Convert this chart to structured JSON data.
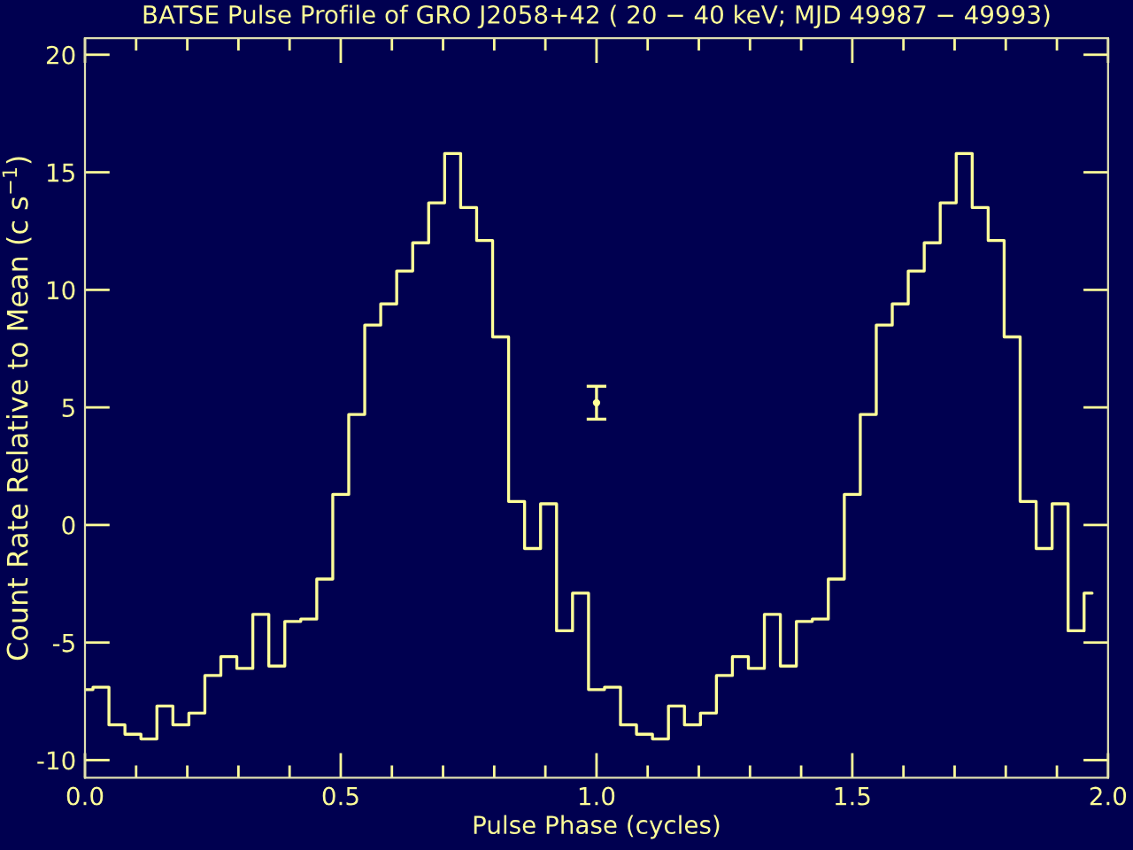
{
  "chart_data": {
    "type": "step",
    "title": "BATSE Pulse Profile of GRO J2058+42 ( 20 − 40 keV; MJD 49987 − 49993)",
    "xlabel": "Pulse Phase (cycles)",
    "ylabel": "Count Rate Relative to Mean (c s$^{−1}$)",
    "x": [
      0.0,
      0.03125,
      0.0625,
      0.09375,
      0.125,
      0.15625,
      0.1875,
      0.21875,
      0.25,
      0.28125,
      0.3125,
      0.34375,
      0.375,
      0.40625,
      0.4375,
      0.46875,
      0.5,
      0.53125,
      0.5625,
      0.59375,
      0.625,
      0.65625,
      0.6875,
      0.71875,
      0.75,
      0.78125,
      0.8125,
      0.84375,
      0.875,
      0.90625,
      0.9375,
      0.96875,
      1.0,
      1.03125,
      1.0625,
      1.09375,
      1.125,
      1.15625,
      1.1875,
      1.21875,
      1.25,
      1.28125,
      1.3125,
      1.34375,
      1.375,
      1.40625,
      1.4375,
      1.46875,
      1.5,
      1.53125,
      1.5625,
      1.59375,
      1.625,
      1.65625,
      1.6875,
      1.71875,
      1.75,
      1.78125,
      1.8125,
      1.84375,
      1.875,
      1.90625,
      1.9375,
      1.96875
    ],
    "series": [
      {
        "color": "#ffff99",
        "values": [
          -7.0,
          -6.9,
          -8.5,
          -8.9,
          -9.1,
          -7.7,
          -8.5,
          -8.0,
          -6.4,
          -5.6,
          -6.1,
          -3.8,
          -6.0,
          -4.1,
          -4.0,
          -2.3,
          1.3,
          4.7,
          8.5,
          9.4,
          10.8,
          12.0,
          13.7,
          15.8,
          13.5,
          12.1,
          8.0,
          1.0,
          -1.0,
          0.9,
          -4.5,
          -2.9,
          -7.0,
          -6.9,
          -8.5,
          -8.9,
          -9.1,
          -7.7,
          -8.5,
          -8.0,
          -6.4,
          -5.6,
          -6.1,
          -3.8,
          -6.0,
          -4.1,
          -4.0,
          -2.3,
          1.3,
          4.7,
          8.5,
          9.4,
          10.8,
          12.0,
          13.7,
          15.8,
          13.5,
          12.1,
          8.0,
          1.0,
          -1.0,
          0.9,
          -4.5,
          -2.9
        ]
      },
      {
        "type": "scatter",
        "color": "#ffff99",
        "x": [
          1.0
        ],
        "values": [
          5.2
        ],
        "errors": [
          0.7
        ]
      }
    ],
    "xlim": [
      0,
      2
    ],
    "ylim": [
      -10.75,
      20.7
    ],
    "xticks": [
      {
        "value": 0.0,
        "label": "0.0"
      },
      {
        "value": 0.1,
        "label": null
      },
      {
        "value": 0.2,
        "label": null
      },
      {
        "value": 0.3,
        "label": null
      },
      {
        "value": 0.4,
        "label": null
      },
      {
        "value": 0.5,
        "label": "0.5"
      },
      {
        "value": 0.6,
        "label": null
      },
      {
        "value": 0.7,
        "label": null
      },
      {
        "value": 0.8,
        "label": null
      },
      {
        "value": 0.9,
        "label": null
      },
      {
        "value": 1.0,
        "label": "1.0"
      },
      {
        "value": 1.1,
        "label": null
      },
      {
        "value": 1.2,
        "label": null
      },
      {
        "value": 1.3,
        "label": null
      },
      {
        "value": 1.4,
        "label": null
      },
      {
        "value": 1.5,
        "label": "1.5"
      },
      {
        "value": 1.6,
        "label": null
      },
      {
        "value": 1.7,
        "label": null
      },
      {
        "value": 1.8,
        "label": null
      },
      {
        "value": 1.9,
        "label": null
      },
      {
        "value": 2.0,
        "label": "2.0"
      }
    ],
    "yticks": [
      -10,
      -5,
      0,
      5,
      10,
      15,
      20
    ],
    "grid": false,
    "legend": false
  }
}
